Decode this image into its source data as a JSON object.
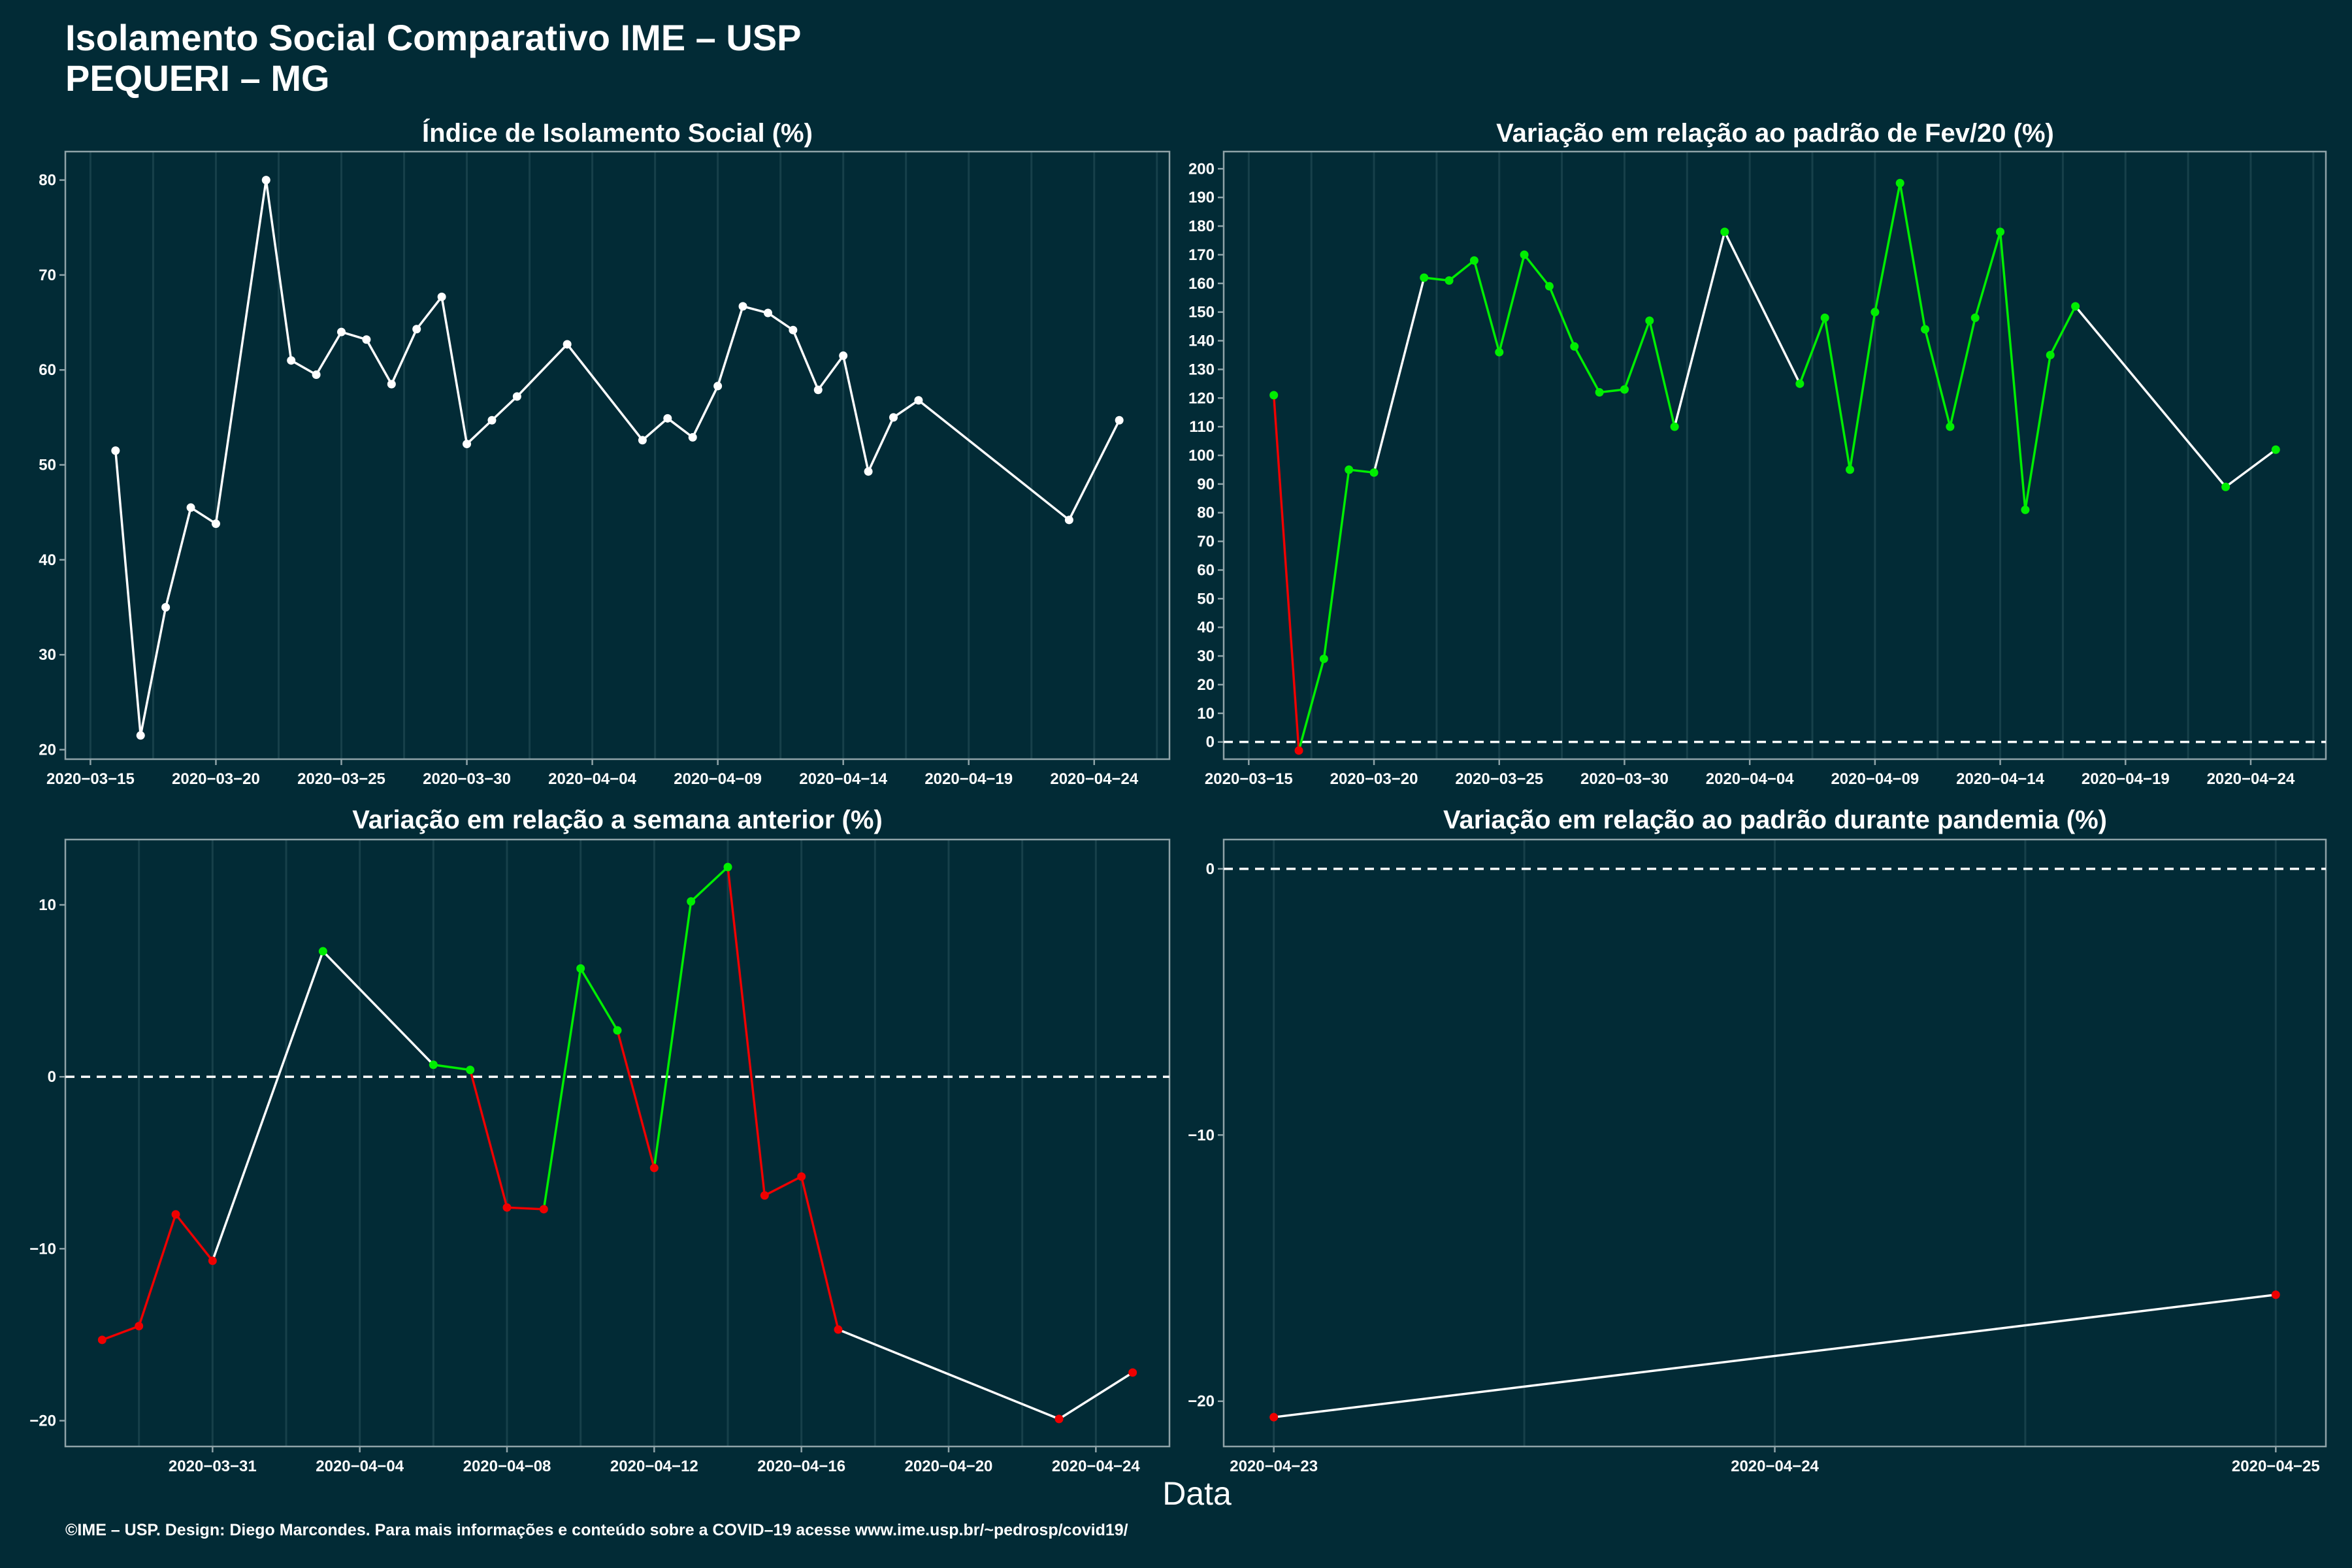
{
  "header": {
    "title_line1": "Isolamento Social Comparativo IME – USP",
    "title_line2": "PEQUERI – MG"
  },
  "x_axis_label": "Data",
  "caption": "©IME – USP. Design: Diego Marcondes. Para mais informações e conteúdo sobre a COVID–19 acesse www.ime.usp.br/~pedrosp/covid19/",
  "colors": {
    "background": "#022b36",
    "line": "#ffffff",
    "increase": "#00ee00",
    "decrease": "#ee0000",
    "grid": "#17404a",
    "axis": "#8fa3a8"
  },
  "chart_data": [
    {
      "id": "isolamento",
      "type": "line",
      "title": "Índice de Isolamento Social (%)",
      "xlim": [
        "2020-03-14",
        "2020-04-27"
      ],
      "ylim": [
        19,
        83
      ],
      "x_ticks": [
        "2020-03-15",
        "2020-03-20",
        "2020-03-25",
        "2020-03-30",
        "2020-04-04",
        "2020-04-09",
        "2020-04-14",
        "2020-04-19",
        "2020-04-24"
      ],
      "y_ticks": [
        20,
        30,
        40,
        50,
        60,
        70,
        80
      ],
      "zero_line": false,
      "points": [
        {
          "x": "2020-03-16",
          "y": 51.5,
          "c": "w"
        },
        {
          "x": "2020-03-17",
          "y": 21.5,
          "c": "w"
        },
        {
          "x": "2020-03-18",
          "y": 35.0,
          "c": "w"
        },
        {
          "x": "2020-03-19",
          "y": 45.5,
          "c": "w"
        },
        {
          "x": "2020-03-20",
          "y": 43.8,
          "c": "w"
        },
        {
          "x": "2020-03-22",
          "y": 80.0,
          "c": "w"
        },
        {
          "x": "2020-03-23",
          "y": 61.0,
          "c": "w"
        },
        {
          "x": "2020-03-24",
          "y": 59.5,
          "c": "w"
        },
        {
          "x": "2020-03-25",
          "y": 64.0,
          "c": "w"
        },
        {
          "x": "2020-03-26",
          "y": 63.2,
          "c": "w"
        },
        {
          "x": "2020-03-27",
          "y": 58.5,
          "c": "w"
        },
        {
          "x": "2020-03-28",
          "y": 64.3,
          "c": "w"
        },
        {
          "x": "2020-03-29",
          "y": 67.7,
          "c": "w"
        },
        {
          "x": "2020-03-30",
          "y": 52.2,
          "c": "w"
        },
        {
          "x": "2020-03-31",
          "y": 54.7,
          "c": "w"
        },
        {
          "x": "2020-04-01",
          "y": 57.2,
          "c": "w"
        },
        {
          "x": "2020-04-03",
          "y": 62.7,
          "c": "w"
        },
        {
          "x": "2020-04-06",
          "y": 52.6,
          "c": "w"
        },
        {
          "x": "2020-04-07",
          "y": 54.9,
          "c": "w"
        },
        {
          "x": "2020-04-08",
          "y": 52.9,
          "c": "w"
        },
        {
          "x": "2020-04-09",
          "y": 58.3,
          "c": "w"
        },
        {
          "x": "2020-04-10",
          "y": 66.7,
          "c": "w"
        },
        {
          "x": "2020-04-11",
          "y": 66.0,
          "c": "w"
        },
        {
          "x": "2020-04-12",
          "y": 64.2,
          "c": "w"
        },
        {
          "x": "2020-04-13",
          "y": 57.9,
          "c": "w"
        },
        {
          "x": "2020-04-14",
          "y": 61.5,
          "c": "w"
        },
        {
          "x": "2020-04-15",
          "y": 49.3,
          "c": "w"
        },
        {
          "x": "2020-04-16",
          "y": 55.0,
          "c": "w"
        },
        {
          "x": "2020-04-17",
          "y": 56.8,
          "c": "w"
        },
        {
          "x": "2020-04-23",
          "y": 44.2,
          "c": "w"
        },
        {
          "x": "2020-04-25",
          "y": 54.7,
          "c": "w"
        }
      ]
    },
    {
      "id": "fev20",
      "type": "line",
      "title": "Variação em relação ao padrão de Fev/20 (%)",
      "xlim": [
        "2020-03-14",
        "2020-04-27"
      ],
      "ylim": [
        -6,
        206
      ],
      "x_ticks": [
        "2020-03-15",
        "2020-03-20",
        "2020-03-25",
        "2020-03-30",
        "2020-04-04",
        "2020-04-09",
        "2020-04-14",
        "2020-04-19",
        "2020-04-24"
      ],
      "y_ticks": [
        0,
        10,
        20,
        30,
        40,
        50,
        60,
        70,
        80,
        90,
        100,
        110,
        120,
        130,
        140,
        150,
        160,
        170,
        180,
        190,
        200
      ],
      "zero_line": true,
      "points": [
        {
          "x": "2020-03-16",
          "y": 121,
          "c": "g"
        },
        {
          "x": "2020-03-17",
          "y": -3,
          "c": "r"
        },
        {
          "x": "2020-03-18",
          "y": 29,
          "c": "g"
        },
        {
          "x": "2020-03-19",
          "y": 95,
          "c": "g"
        },
        {
          "x": "2020-03-20",
          "y": 94,
          "c": "g"
        },
        {
          "x": "2020-03-22",
          "y": 162,
          "c": "g"
        },
        {
          "x": "2020-03-23",
          "y": 161,
          "c": "g"
        },
        {
          "x": "2020-03-24",
          "y": 168,
          "c": "g"
        },
        {
          "x": "2020-03-25",
          "y": 136,
          "c": "g"
        },
        {
          "x": "2020-03-26",
          "y": 170,
          "c": "g"
        },
        {
          "x": "2020-03-27",
          "y": 159,
          "c": "g"
        },
        {
          "x": "2020-03-28",
          "y": 138,
          "c": "g"
        },
        {
          "x": "2020-03-29",
          "y": 122,
          "c": "g"
        },
        {
          "x": "2020-03-30",
          "y": 123,
          "c": "g"
        },
        {
          "x": "2020-03-31",
          "y": 147,
          "c": "g"
        },
        {
          "x": "2020-04-01",
          "y": 110,
          "c": "g"
        },
        {
          "x": "2020-04-03",
          "y": 178,
          "c": "g"
        },
        {
          "x": "2020-04-06",
          "y": 125,
          "c": "g"
        },
        {
          "x": "2020-04-07",
          "y": 148,
          "c": "g"
        },
        {
          "x": "2020-04-08",
          "y": 95,
          "c": "g"
        },
        {
          "x": "2020-04-09",
          "y": 150,
          "c": "g"
        },
        {
          "x": "2020-04-10",
          "y": 195,
          "c": "g"
        },
        {
          "x": "2020-04-11",
          "y": 144,
          "c": "g"
        },
        {
          "x": "2020-04-12",
          "y": 110,
          "c": "g"
        },
        {
          "x": "2020-04-13",
          "y": 148,
          "c": "g"
        },
        {
          "x": "2020-04-14",
          "y": 178,
          "c": "g"
        },
        {
          "x": "2020-04-15",
          "y": 81,
          "c": "g"
        },
        {
          "x": "2020-04-16",
          "y": 135,
          "c": "g"
        },
        {
          "x": "2020-04-17",
          "y": 152,
          "c": "g"
        },
        {
          "x": "2020-04-23",
          "y": 89,
          "c": "g"
        },
        {
          "x": "2020-04-25",
          "y": 102,
          "c": "g"
        }
      ]
    },
    {
      "id": "semana",
      "type": "line",
      "title": "Variação em relação a semana anterior (%)",
      "xlim": [
        "2020-03-27",
        "2020-04-26"
      ],
      "ylim": [
        -21.5,
        13.8
      ],
      "x_ticks": [
        "2020-03-31",
        "2020-04-04",
        "2020-04-08",
        "2020-04-12",
        "2020-04-16",
        "2020-04-20",
        "2020-04-24"
      ],
      "y_ticks": [
        -20,
        -10,
        0,
        10
      ],
      "zero_line": true,
      "points": [
        {
          "x": "2020-03-28",
          "y": -15.3,
          "c": "r"
        },
        {
          "x": "2020-03-29",
          "y": -14.5,
          "c": "r"
        },
        {
          "x": "2020-03-30",
          "y": -8.0,
          "c": "r"
        },
        {
          "x": "2020-03-31",
          "y": -10.7,
          "c": "r"
        },
        {
          "x": "2020-04-03",
          "y": 7.3,
          "c": "g"
        },
        {
          "x": "2020-04-06",
          "y": 0.7,
          "c": "g"
        },
        {
          "x": "2020-04-07",
          "y": 0.4,
          "c": "g"
        },
        {
          "x": "2020-04-08",
          "y": -7.6,
          "c": "r"
        },
        {
          "x": "2020-04-09",
          "y": -7.7,
          "c": "r"
        },
        {
          "x": "2020-04-10",
          "y": 6.3,
          "c": "g"
        },
        {
          "x": "2020-04-11",
          "y": 2.7,
          "c": "g"
        },
        {
          "x": "2020-04-12",
          "y": -5.3,
          "c": "r"
        },
        {
          "x": "2020-04-13",
          "y": 10.2,
          "c": "g"
        },
        {
          "x": "2020-04-14",
          "y": 12.2,
          "c": "g"
        },
        {
          "x": "2020-04-15",
          "y": -6.9,
          "c": "r"
        },
        {
          "x": "2020-04-16",
          "y": -5.8,
          "c": "r"
        },
        {
          "x": "2020-04-17",
          "y": -14.7,
          "c": "r"
        },
        {
          "x": "2020-04-23",
          "y": -19.9,
          "c": "r"
        },
        {
          "x": "2020-04-25",
          "y": -17.2,
          "c": "r"
        }
      ]
    },
    {
      "id": "pandemia",
      "type": "line",
      "title": "Variação em relação ao padrão durante pandemia (%)",
      "xlim": [
        "2020-04-22T21:36:00",
        "2020-04-25T02:24:00"
      ],
      "ylim": [
        -21.7,
        1.1
      ],
      "x_ticks": [
        "2020-04-23",
        "2020-04-24",
        "2020-04-25"
      ],
      "y_ticks": [
        -20,
        -10,
        0
      ],
      "zero_line": true,
      "points": [
        {
          "x": "2020-04-23",
          "y": -20.6,
          "c": "r"
        },
        {
          "x": "2020-04-25",
          "y": -16.0,
          "c": "r"
        }
      ]
    }
  ]
}
